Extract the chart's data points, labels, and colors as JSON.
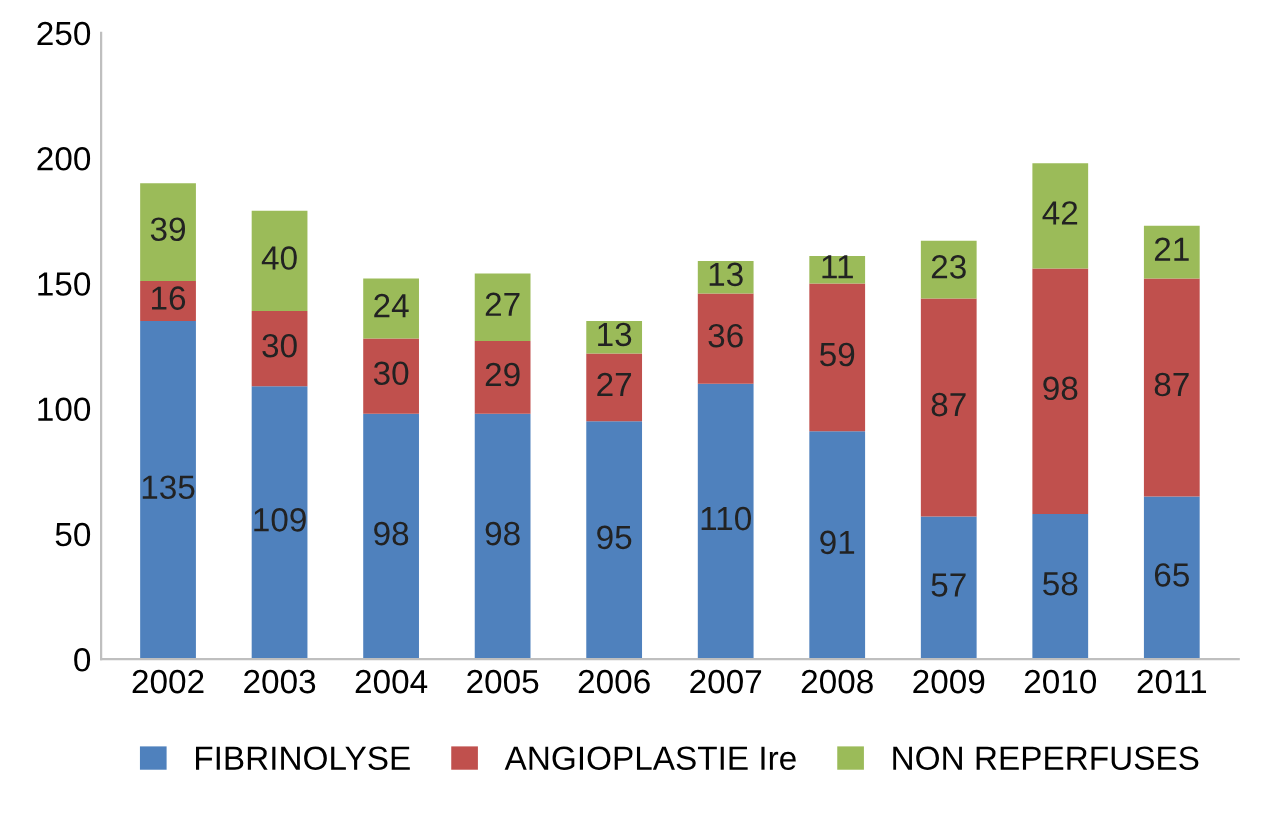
{
  "chart_data": {
    "type": "bar",
    "stacked": true,
    "data_labels": true,
    "grid": false,
    "legend": "bottom",
    "categories": [
      "2002",
      "2003",
      "2004",
      "2005",
      "2006",
      "2007",
      "2008",
      "2009",
      "2010",
      "2011"
    ],
    "ylim": [
      0,
      250
    ],
    "yticks": [
      0,
      50,
      100,
      150,
      200,
      250
    ],
    "series": [
      {
        "name": "FIBRINOLYSE",
        "color": "#4f81bd",
        "values": [
          135,
          109,
          98,
          98,
          95,
          110,
          91,
          57,
          58,
          65
        ]
      },
      {
        "name": "ANGIOPLASTIE Ire",
        "color": "#c0504d",
        "values": [
          16,
          30,
          30,
          29,
          27,
          36,
          59,
          87,
          98,
          87
        ]
      },
      {
        "name": "NON REPERFUSES",
        "color": "#9bbb59",
        "values": [
          39,
          40,
          24,
          27,
          13,
          13,
          11,
          23,
          42,
          21
        ]
      }
    ]
  }
}
